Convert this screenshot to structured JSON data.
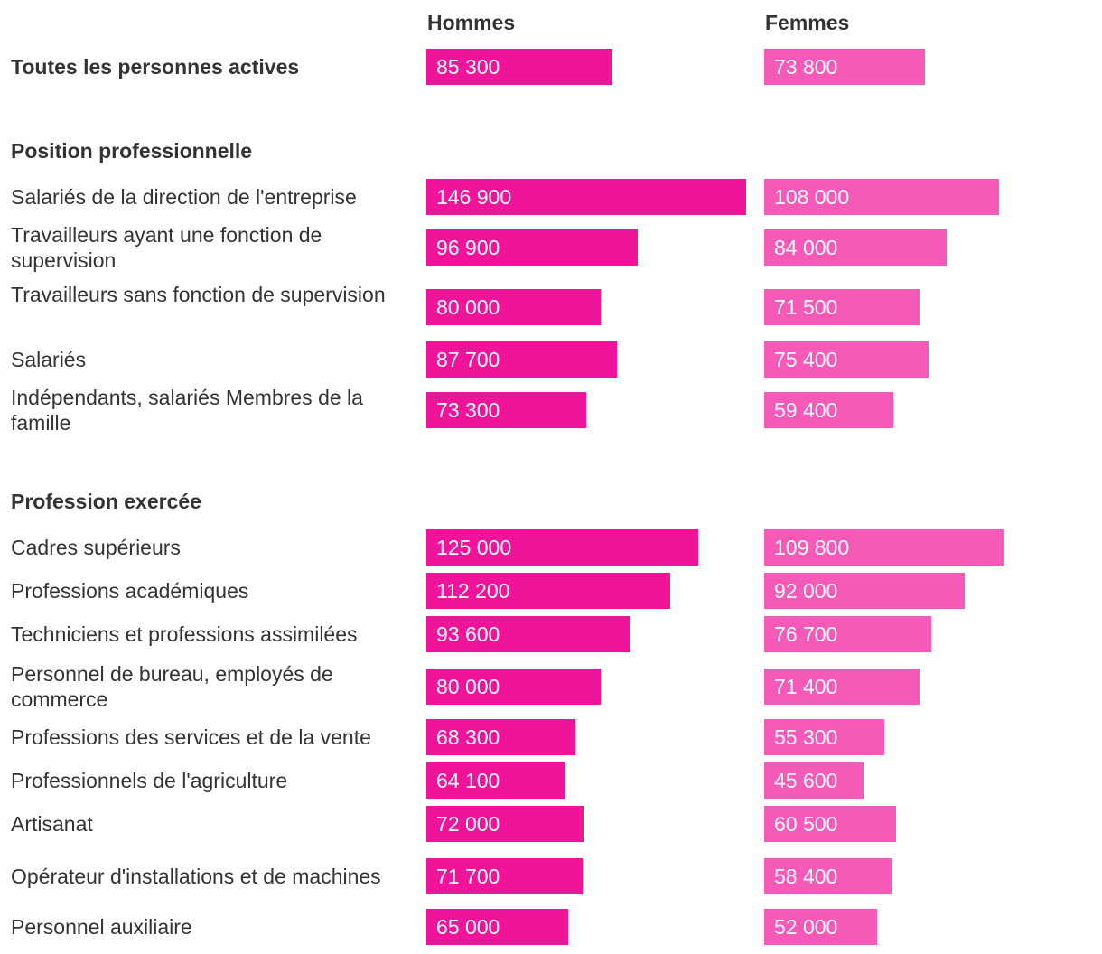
{
  "chart_data": {
    "type": "bar",
    "orientation": "horizontal",
    "columns": [
      "Hommes",
      "Femmes"
    ],
    "colors": {
      "Hommes": "#f0149b",
      "Femmes": "#f55ab9"
    },
    "xlim": [
      0,
      146900
    ],
    "groups": [
      {
        "title": "",
        "rows": [
          {
            "label": "Toutes les personnes actives",
            "bold": true,
            "hommes": 85300,
            "femmes": 73800,
            "hommes_label": "85 300",
            "femmes_label": "73 800"
          }
        ]
      },
      {
        "title": "Position professionnelle",
        "rows": [
          {
            "label": "Salariés de la direction de l'entreprise",
            "hommes": 146900,
            "femmes": 108000,
            "hommes_label": "146 900",
            "femmes_label": "108 000"
          },
          {
            "label": "Travailleurs ayant une fonction de supervision",
            "hommes": 96900,
            "femmes": 84000,
            "hommes_label": "96 900",
            "femmes_label": "84 000"
          },
          {
            "label": "Travailleurs sans fonction de supervision",
            "hommes": 80000,
            "femmes": 71500,
            "hommes_label": "80 000",
            "femmes_label": "71 500"
          },
          {
            "label": "Salariés",
            "hommes": 87700,
            "femmes": 75400,
            "hommes_label": "87 700",
            "femmes_label": "75 400"
          },
          {
            "label": "Indépendants, salariés Membres de la famille",
            "hommes": 73300,
            "femmes": 59400,
            "hommes_label": "73 300",
            "femmes_label": "59 400"
          }
        ]
      },
      {
        "title": "Profession exercée",
        "rows": [
          {
            "label": "Cadres supérieurs",
            "hommes": 125000,
            "femmes": 109800,
            "hommes_label": "125 000",
            "femmes_label": "109 800"
          },
          {
            "label": "Professions académiques",
            "hommes": 112200,
            "femmes": 92000,
            "hommes_label": "112 200",
            "femmes_label": "92 000"
          },
          {
            "label": "Techniciens et professions assimilées",
            "hommes": 93600,
            "femmes": 76700,
            "hommes_label": "93 600",
            "femmes_label": "76 700"
          },
          {
            "label": "Personnel de bureau, employés de commerce",
            "hommes": 80000,
            "femmes": 71400,
            "hommes_label": "80 000",
            "femmes_label": "71 400"
          },
          {
            "label": "Professions des services et de la vente",
            "hommes": 68300,
            "femmes": 55300,
            "hommes_label": "68 300",
            "femmes_label": "55 300"
          },
          {
            "label": "Professionnels de l'agriculture",
            "hommes": 64100,
            "femmes": 45600,
            "hommes_label": "64 100",
            "femmes_label": "45 600"
          },
          {
            "label": "Artisanat",
            "hommes": 72000,
            "femmes": 60500,
            "hommes_label": "72 000",
            "femmes_label": "60 500"
          },
          {
            "label": "Opérateur d'installations et de machines",
            "hommes": 71700,
            "femmes": 58400,
            "hommes_label": "71 700",
            "femmes_label": "58 400"
          },
          {
            "label": "Personnel auxiliaire",
            "hommes": 65000,
            "femmes": 52000,
            "hommes_label": "65 000",
            "femmes_label": "52 000"
          }
        ]
      }
    ]
  }
}
